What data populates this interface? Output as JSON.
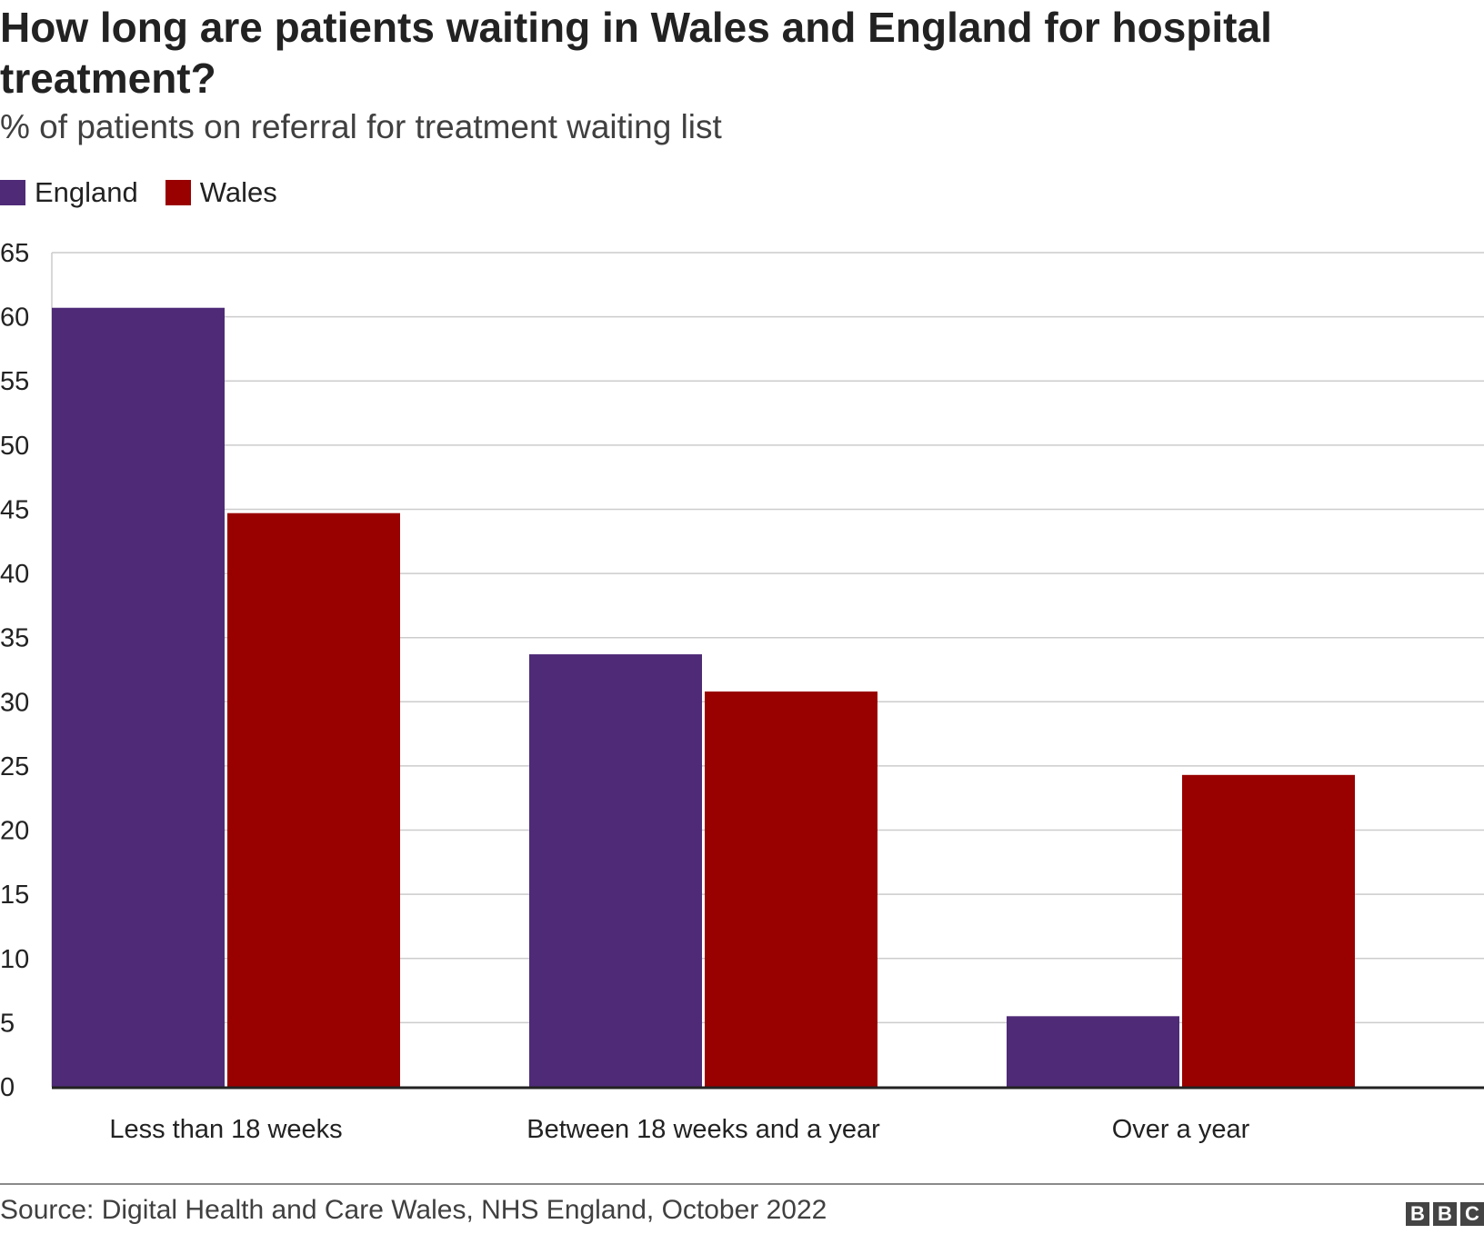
{
  "header": {
    "title": "How long are patients waiting in Wales and England for hospital treatment?",
    "subtitle": "% of patients on referral for treatment waiting list"
  },
  "legend": [
    {
      "label": "England",
      "color": "#4e2a77"
    },
    {
      "label": "Wales",
      "color": "#990000"
    }
  ],
  "chart_data": {
    "type": "bar",
    "title": "How long are patients waiting in Wales and England for hospital treatment?",
    "subtitle": "% of patients on referral for treatment waiting list",
    "categories": [
      "Less than 18 weeks",
      "Between 18 weeks and a year",
      "Over a year"
    ],
    "series": [
      {
        "name": "England",
        "color": "#4e2a77",
        "values": [
          60.7,
          33.7,
          5.5
        ]
      },
      {
        "name": "Wales",
        "color": "#990000",
        "values": [
          44.7,
          30.8,
          24.3
        ]
      }
    ],
    "xlabel": "",
    "ylabel": "",
    "ylim": [
      0,
      65
    ],
    "yticks": [
      "0",
      "5",
      "10",
      "15",
      "20",
      "25",
      "30",
      "35",
      "40",
      "45",
      "50",
      "55",
      "60",
      "65"
    ],
    "grid": true,
    "legend_position": "top-left"
  },
  "footer": {
    "source": "Source: Digital Health and Care Wales, NHS England, October 2022",
    "logo_letters": [
      "B",
      "B",
      "C"
    ]
  }
}
